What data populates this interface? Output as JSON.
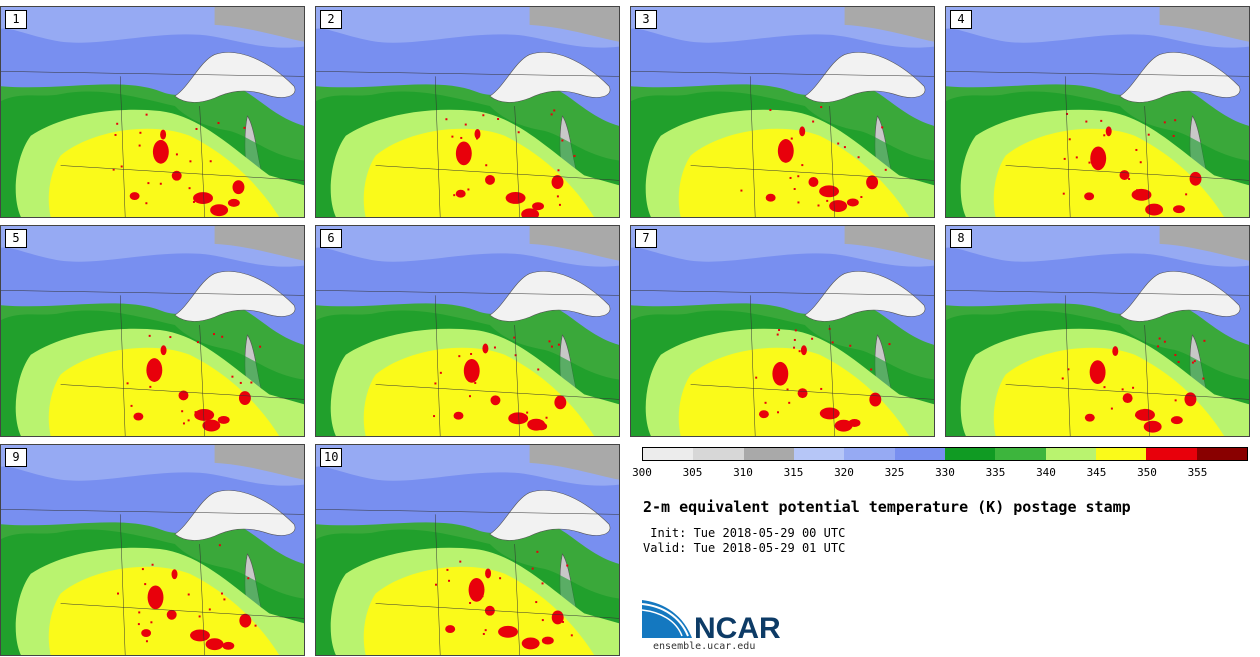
{
  "panels": [
    {
      "label": "1"
    },
    {
      "label": "2"
    },
    {
      "label": "3"
    },
    {
      "label": "4"
    },
    {
      "label": "5"
    },
    {
      "label": "6"
    },
    {
      "label": "7"
    },
    {
      "label": "8"
    },
    {
      "label": "9"
    },
    {
      "label": "10"
    }
  ],
  "colorbar": {
    "ticks": [
      "300",
      "305",
      "310",
      "315",
      "320",
      "325",
      "330",
      "335",
      "340",
      "345",
      "350",
      "355"
    ],
    "colors": [
      "#ececec",
      "#d7d7d7",
      "#a9a9a9",
      "#b6c6f7",
      "#96aaf3",
      "#788ff0",
      "#109b23",
      "#3db53d",
      "#b9f36f",
      "#fafa1a",
      "#e8000b",
      "#890000"
    ]
  },
  "title": "2-m equivalent potential temperature (K) postage stamp",
  "init": " Init: Tue 2018-05-29 00 UTC",
  "valid": "Valid: Tue 2018-05-29 01 UTC",
  "logo": {
    "text": "NCAR",
    "url": "ensemble.ucar.edu",
    "color": "#0d3b66",
    "accent": "#1478c0"
  }
}
